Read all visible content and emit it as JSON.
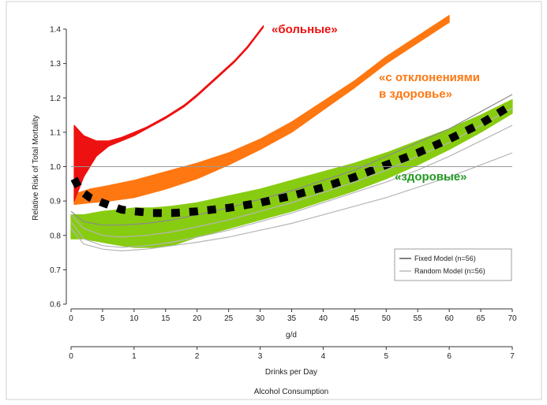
{
  "chart_data": {
    "type": "line",
    "title": "",
    "ylabel": "Relative Risk of Total Mortality",
    "xlabel": "g/d",
    "xlabel2": "Drinks per Day",
    "xlabel3": "Alcohol Consumption",
    "xlim": [
      0,
      70
    ],
    "ylim": [
      0.6,
      1.42
    ],
    "x_ticks": [
      "0",
      "5",
      "10",
      "15",
      "20",
      "25",
      "30",
      "35",
      "40",
      "45",
      "50",
      "55",
      "60",
      "65",
      "70"
    ],
    "y_ticks": [
      "0.6",
      "0.7",
      "0.8",
      "0.9",
      "1.0",
      "1.1",
      "1.2",
      "1.3",
      "1.4"
    ],
    "drinks_ticks": [
      "0",
      "1",
      "2",
      "3",
      "4",
      "5",
      "6",
      "7"
    ],
    "reference_line": 1.0,
    "legend": {
      "position": "bottom-right",
      "entries": [
        {
          "label": "Fixed Model (n=56)",
          "color": "#555555"
        },
        {
          "label": "Random Model (n=56)",
          "color": "#bbbbbb"
        }
      ]
    },
    "annotations": {
      "sick": "«больные»",
      "deviations_line1": "«с отклонениями",
      "deviations_line2": "в здоровье»",
      "healthy": "«здоровые»"
    },
    "colors": {
      "sick": "#ee1111",
      "deviations": "#ff7711",
      "healthy": "#88cc11",
      "healthy_text": "#229922",
      "dots": "#000000"
    },
    "series": [
      {
        "key": "sick",
        "x": [
          0.5,
          2,
          4,
          6,
          8,
          10,
          12,
          15,
          18,
          20,
          23,
          26,
          28,
          30.5
        ],
        "upper": [
          1.12,
          1.09,
          1.075,
          1.075,
          1.085,
          1.1,
          1.115,
          1.145,
          1.18,
          1.21,
          1.26,
          1.31,
          1.35,
          1.41
        ],
        "lower": [
          0.9,
          0.97,
          1.03,
          1.06,
          1.075,
          1.09,
          1.11,
          1.14,
          1.175,
          1.205,
          1.255,
          1.305,
          1.345,
          1.405
        ]
      },
      {
        "key": "deviations",
        "x": [
          0.5,
          3,
          6,
          10,
          15,
          20,
          25,
          30,
          35,
          40,
          45,
          50,
          55,
          60
        ],
        "upper": [
          0.92,
          0.935,
          0.945,
          0.96,
          0.985,
          1.01,
          1.04,
          1.08,
          1.13,
          1.19,
          1.25,
          1.32,
          1.38,
          1.44
        ],
        "lower": [
          0.89,
          0.895,
          0.9,
          0.91,
          0.935,
          0.965,
          1.005,
          1.05,
          1.1,
          1.165,
          1.23,
          1.3,
          1.36,
          1.42
        ]
      },
      {
        "key": "healthy",
        "x": [
          0,
          2,
          5,
          8,
          10,
          13,
          16,
          20,
          25,
          30,
          35,
          40,
          45,
          50,
          55,
          60,
          65,
          70
        ],
        "upper": [
          0.86,
          0.86,
          0.87,
          0.875,
          0.88,
          0.88,
          0.885,
          0.895,
          0.915,
          0.935,
          0.96,
          0.985,
          1.01,
          1.04,
          1.075,
          1.11,
          1.15,
          1.195
        ],
        "lower": [
          0.79,
          0.79,
          0.78,
          0.77,
          0.765,
          0.765,
          0.77,
          0.795,
          0.82,
          0.845,
          0.87,
          0.9,
          0.93,
          0.965,
          1.005,
          1.05,
          1.1,
          1.155
        ]
      },
      {
        "key": "dots",
        "x": [
          0.5,
          1.5,
          3,
          5,
          8,
          10,
          13,
          16,
          20,
          25,
          30,
          35,
          40,
          45,
          50,
          55,
          60,
          65,
          70
        ],
        "y": [
          0.965,
          0.93,
          0.91,
          0.895,
          0.875,
          0.87,
          0.865,
          0.865,
          0.87,
          0.88,
          0.895,
          0.915,
          0.94,
          0.97,
          1.005,
          1.04,
          1.08,
          1.125,
          1.18
        ]
      },
      {
        "key": "grey",
        "lines": [
          {
            "x": [
              0,
              2,
              5,
              8,
              12,
              16,
              20,
              25,
              30,
              35,
              40,
              45,
              50,
              55,
              60,
              65,
              70
            ],
            "y": [
              0.87,
              0.84,
              0.83,
              0.83,
              0.835,
              0.845,
              0.86,
              0.88,
              0.905,
              0.93,
              0.96,
              0.99,
              1.03,
              1.07,
              1.11,
              1.16,
              1.21
            ]
          },
          {
            "x": [
              0,
              2,
              5,
              8,
              12,
              16,
              20,
              25,
              30,
              35,
              40,
              45,
              50,
              55,
              60,
              65,
              70
            ],
            "y": [
              0.86,
              0.82,
              0.8,
              0.795,
              0.8,
              0.81,
              0.825,
              0.845,
              0.87,
              0.895,
              0.925,
              0.955,
              0.99,
              1.03,
              1.07,
              1.12,
              1.17
            ]
          },
          {
            "x": [
              0,
              2,
              5,
              8,
              12,
              16,
              20,
              25,
              30,
              35,
              40,
              45,
              50,
              55,
              60,
              65,
              70
            ],
            "y": [
              0.84,
              0.79,
              0.77,
              0.765,
              0.77,
              0.78,
              0.795,
              0.815,
              0.84,
              0.865,
              0.895,
              0.925,
              0.955,
              0.99,
              1.03,
              1.075,
              1.12
            ]
          },
          {
            "x": [
              0,
              2,
              5,
              8,
              12,
              16,
              20,
              25,
              30,
              35,
              40,
              45,
              50,
              55,
              60,
              65,
              70
            ],
            "y": [
              0.82,
              0.775,
              0.76,
              0.755,
              0.76,
              0.77,
              0.78,
              0.795,
              0.815,
              0.835,
              0.86,
              0.885,
              0.91,
              0.94,
              0.97,
              1.005,
              1.04
            ]
          }
        ]
      }
    ]
  }
}
